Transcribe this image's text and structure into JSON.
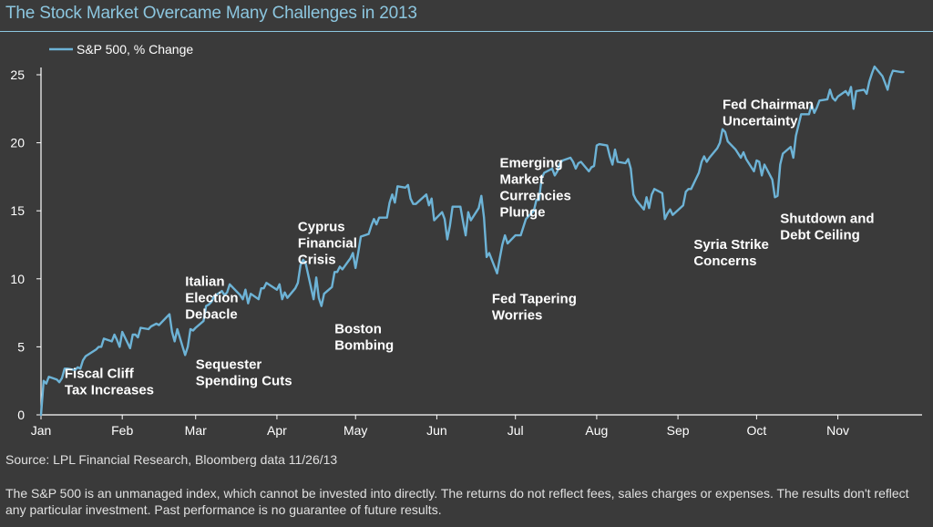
{
  "title": "The Stock Market Overcame Many Challenges in 2013",
  "source": "Source: LPL Financial Research, Bloomberg data   11/26/13",
  "disclaimer": "The S&P 500 is an unmanaged index, which cannot be invested into directly. The returns do not reflect fees, sales charges or expenses. The results don't reflect any particular investment. Past performance is no guarantee of future results.",
  "colors": {
    "line": "#6db3d6",
    "background": "#3a3a3a",
    "title": "#8cc6df",
    "text": "#ffffff"
  },
  "chart_data": {
    "type": "line",
    "title": "The Stock Market Overcame Many Challenges in 2013",
    "xlabel": "",
    "ylabel": "",
    "ylim": [
      0,
      25
    ],
    "yticks": [
      0,
      5,
      10,
      15,
      20,
      25
    ],
    "grid": false,
    "legend_position": "top-left",
    "x_tick_labels": [
      "Jan",
      "Feb",
      "Mar",
      "Apr",
      "May",
      "Jun",
      "Jul",
      "Aug",
      "Sep",
      "Oct",
      "Nov"
    ],
    "series": [
      {
        "name": "S&P 500, % Change",
        "points": [
          [
            "2013-01-01",
            0
          ],
          [
            "2013-01-02",
            2.5
          ],
          [
            "2013-01-03",
            2.3
          ],
          [
            "2013-01-04",
            2.8
          ],
          [
            "2013-01-07",
            2.6
          ],
          [
            "2013-01-08",
            2.4
          ],
          [
            "2013-01-09",
            2.7
          ],
          [
            "2013-01-10",
            3.4
          ],
          [
            "2013-01-11",
            3.4
          ],
          [
            "2013-01-14",
            3.3
          ],
          [
            "2013-01-15",
            3.5
          ],
          [
            "2013-01-16",
            3.4
          ],
          [
            "2013-01-17",
            4.0
          ],
          [
            "2013-01-18",
            4.3
          ],
          [
            "2013-01-22",
            4.8
          ],
          [
            "2013-01-23",
            5.0
          ],
          [
            "2013-01-24",
            5.0
          ],
          [
            "2013-01-25",
            5.6
          ],
          [
            "2013-01-28",
            5.4
          ],
          [
            "2013-01-29",
            5.9
          ],
          [
            "2013-01-30",
            5.5
          ],
          [
            "2013-01-31",
            5.0
          ],
          [
            "2013-02-01",
            6.1
          ],
          [
            "2013-02-04",
            4.9
          ],
          [
            "2013-02-05",
            5.9
          ],
          [
            "2013-02-06",
            5.9
          ],
          [
            "2013-02-07",
            5.7
          ],
          [
            "2013-02-08",
            6.4
          ],
          [
            "2013-02-11",
            6.3
          ],
          [
            "2013-02-12",
            6.5
          ],
          [
            "2013-02-13",
            6.6
          ],
          [
            "2013-02-14",
            6.7
          ],
          [
            "2013-02-15",
            6.6
          ],
          [
            "2013-02-19",
            7.4
          ],
          [
            "2013-02-20",
            6.1
          ],
          [
            "2013-02-21",
            5.4
          ],
          [
            "2013-02-22",
            6.3
          ],
          [
            "2013-02-25",
            4.4
          ],
          [
            "2013-02-26",
            5.0
          ],
          [
            "2013-02-27",
            6.3
          ],
          [
            "2013-02-28",
            6.2
          ],
          [
            "2013-03-01",
            6.4
          ],
          [
            "2013-03-04",
            6.9
          ],
          [
            "2013-03-05",
            8.0
          ],
          [
            "2013-03-06",
            8.1
          ],
          [
            "2013-03-07",
            8.3
          ],
          [
            "2013-03-08",
            8.7
          ],
          [
            "2013-03-11",
            9.1
          ],
          [
            "2013-03-12",
            8.8
          ],
          [
            "2013-03-13",
            9.0
          ],
          [
            "2013-03-14",
            9.6
          ],
          [
            "2013-03-15",
            9.4
          ],
          [
            "2013-03-18",
            8.8
          ],
          [
            "2013-03-19",
            8.5
          ],
          [
            "2013-03-20",
            9.2
          ],
          [
            "2013-03-21",
            8.2
          ],
          [
            "2013-03-22",
            8.9
          ],
          [
            "2013-03-25",
            8.5
          ],
          [
            "2013-03-26",
            9.3
          ],
          [
            "2013-03-27",
            9.3
          ],
          [
            "2013-03-28",
            9.7
          ],
          [
            "2013-04-01",
            9.2
          ],
          [
            "2013-04-02",
            9.6
          ],
          [
            "2013-04-03",
            8.5
          ],
          [
            "2013-04-04",
            9.0
          ],
          [
            "2013-04-05",
            8.6
          ],
          [
            "2013-04-08",
            9.3
          ],
          [
            "2013-04-09",
            9.7
          ],
          [
            "2013-04-10",
            11.0
          ],
          [
            "2013-04-11",
            11.4
          ],
          [
            "2013-04-12",
            11.1
          ],
          [
            "2013-04-15",
            8.5
          ],
          [
            "2013-04-16",
            10.1
          ],
          [
            "2013-04-17",
            8.6
          ],
          [
            "2013-04-18",
            8.0
          ],
          [
            "2013-04-19",
            8.9
          ],
          [
            "2013-04-22",
            9.4
          ],
          [
            "2013-04-23",
            10.5
          ],
          [
            "2013-04-24",
            10.5
          ],
          [
            "2013-04-25",
            10.9
          ],
          [
            "2013-04-26",
            10.7
          ],
          [
            "2013-04-29",
            11.5
          ],
          [
            "2013-04-30",
            11.9
          ],
          [
            "2013-05-01",
            10.8
          ],
          [
            "2013-05-02",
            11.9
          ],
          [
            "2013-05-03",
            13.1
          ],
          [
            "2013-05-06",
            13.3
          ],
          [
            "2013-05-07",
            13.9
          ],
          [
            "2013-05-08",
            14.4
          ],
          [
            "2013-05-09",
            14.0
          ],
          [
            "2013-05-10",
            14.5
          ],
          [
            "2013-05-13",
            14.5
          ],
          [
            "2013-05-14",
            15.6
          ],
          [
            "2013-05-15",
            16.2
          ],
          [
            "2013-05-16",
            15.6
          ],
          [
            "2013-05-17",
            16.8
          ],
          [
            "2013-05-20",
            16.7
          ],
          [
            "2013-05-21",
            16.9
          ],
          [
            "2013-05-22",
            15.9
          ],
          [
            "2013-05-23",
            15.5
          ],
          [
            "2013-05-24",
            15.5
          ],
          [
            "2013-05-28",
            16.2
          ],
          [
            "2013-05-29",
            15.4
          ],
          [
            "2013-05-30",
            15.9
          ],
          [
            "2013-05-31",
            14.3
          ],
          [
            "2013-06-03",
            14.9
          ],
          [
            "2013-06-04",
            14.4
          ],
          [
            "2013-06-05",
            12.9
          ],
          [
            "2013-06-06",
            13.9
          ],
          [
            "2013-06-07",
            15.3
          ],
          [
            "2013-06-10",
            15.3
          ],
          [
            "2013-06-11",
            14.2
          ],
          [
            "2013-06-12",
            13.2
          ],
          [
            "2013-06-13",
            14.9
          ],
          [
            "2013-06-14",
            14.3
          ],
          [
            "2013-06-17",
            15.2
          ],
          [
            "2013-06-18",
            16.1
          ],
          [
            "2013-06-19",
            14.5
          ],
          [
            "2013-06-20",
            11.6
          ],
          [
            "2013-06-21",
            11.9
          ],
          [
            "2013-06-24",
            10.4
          ],
          [
            "2013-06-25",
            11.5
          ],
          [
            "2013-06-26",
            12.5
          ],
          [
            "2013-06-27",
            13.2
          ],
          [
            "2013-06-28",
            12.6
          ],
          [
            "2013-07-01",
            13.2
          ],
          [
            "2013-07-02",
            13.2
          ],
          [
            "2013-07-03",
            13.2
          ],
          [
            "2013-07-05",
            14.4
          ],
          [
            "2013-07-08",
            15.0
          ],
          [
            "2013-07-09",
            15.8
          ],
          [
            "2013-07-10",
            15.8
          ],
          [
            "2013-07-11",
            17.4
          ],
          [
            "2013-07-12",
            17.8
          ],
          [
            "2013-07-15",
            18.1
          ],
          [
            "2013-07-16",
            17.6
          ],
          [
            "2013-07-17",
            17.9
          ],
          [
            "2013-07-18",
            18.5
          ],
          [
            "2013-07-19",
            18.7
          ],
          [
            "2013-07-22",
            18.9
          ],
          [
            "2013-07-23",
            18.6
          ],
          [
            "2013-07-24",
            18.1
          ],
          [
            "2013-07-25",
            18.5
          ],
          [
            "2013-07-26",
            18.6
          ],
          [
            "2013-07-29",
            17.9
          ],
          [
            "2013-07-30",
            18.2
          ],
          [
            "2013-07-31",
            18.3
          ],
          [
            "2013-08-01",
            19.8
          ],
          [
            "2013-08-02",
            19.9
          ],
          [
            "2013-08-05",
            19.8
          ],
          [
            "2013-08-06",
            19.0
          ],
          [
            "2013-08-07",
            18.4
          ],
          [
            "2013-08-08",
            19.5
          ],
          [
            "2013-08-09",
            18.6
          ],
          [
            "2013-08-12",
            18.5
          ],
          [
            "2013-08-13",
            18.8
          ],
          [
            "2013-08-14",
            18.1
          ],
          [
            "2013-08-15",
            16.2
          ],
          [
            "2013-08-16",
            15.8
          ],
          [
            "2013-08-19",
            15.1
          ],
          [
            "2013-08-20",
            16.0
          ],
          [
            "2013-08-21",
            15.2
          ],
          [
            "2013-08-22",
            16.2
          ],
          [
            "2013-08-23",
            16.6
          ],
          [
            "2013-08-26",
            16.3
          ],
          [
            "2013-08-27",
            14.4
          ],
          [
            "2013-08-28",
            14.8
          ],
          [
            "2013-08-29",
            15.1
          ],
          [
            "2013-08-30",
            14.7
          ],
          [
            "2013-09-03",
            15.4
          ],
          [
            "2013-09-04",
            16.4
          ],
          [
            "2013-09-05",
            16.6
          ],
          [
            "2013-09-06",
            16.6
          ],
          [
            "2013-09-09",
            17.8
          ],
          [
            "2013-09-10",
            18.6
          ],
          [
            "2013-09-11",
            19.0
          ],
          [
            "2013-09-12",
            18.6
          ],
          [
            "2013-09-13",
            18.9
          ],
          [
            "2013-09-16",
            19.6
          ],
          [
            "2013-09-17",
            20.0
          ],
          [
            "2013-09-18",
            21.0
          ],
          [
            "2013-09-19",
            20.8
          ],
          [
            "2013-09-20",
            20.1
          ],
          [
            "2013-09-23",
            19.5
          ],
          [
            "2013-09-24",
            19.2
          ],
          [
            "2013-09-25",
            18.9
          ],
          [
            "2013-09-26",
            19.3
          ],
          [
            "2013-09-27",
            18.8
          ],
          [
            "2013-09-30",
            17.9
          ],
          [
            "2013-10-01",
            18.7
          ],
          [
            "2013-10-02",
            18.6
          ],
          [
            "2013-10-03",
            17.6
          ],
          [
            "2013-10-04",
            18.4
          ],
          [
            "2013-10-07",
            17.3
          ],
          [
            "2013-10-08",
            16.0
          ],
          [
            "2013-10-09",
            16.1
          ],
          [
            "2013-10-10",
            18.4
          ],
          [
            "2013-10-11",
            19.2
          ],
          [
            "2013-10-14",
            19.7
          ],
          [
            "2013-10-15",
            18.9
          ],
          [
            "2013-10-16",
            20.5
          ],
          [
            "2013-10-17",
            21.3
          ],
          [
            "2013-10-18",
            22.1
          ],
          [
            "2013-10-21",
            22.1
          ],
          [
            "2013-10-22",
            22.8
          ],
          [
            "2013-10-23",
            22.2
          ],
          [
            "2013-10-24",
            22.6
          ],
          [
            "2013-10-25",
            23.1
          ],
          [
            "2013-10-28",
            23.2
          ],
          [
            "2013-10-29",
            23.9
          ],
          [
            "2013-10-30",
            23.3
          ],
          [
            "2013-10-31",
            23.1
          ],
          [
            "2013-11-01",
            23.4
          ],
          [
            "2013-11-04",
            23.8
          ],
          [
            "2013-11-05",
            23.5
          ],
          [
            "2013-11-06",
            24.1
          ],
          [
            "2013-11-07",
            22.5
          ],
          [
            "2013-11-08",
            23.8
          ],
          [
            "2013-11-11",
            23.9
          ],
          [
            "2013-11-12",
            23.6
          ],
          [
            "2013-11-13",
            24.5
          ],
          [
            "2013-11-14",
            25.1
          ],
          [
            "2013-11-15",
            25.6
          ],
          [
            "2013-11-18",
            24.9
          ],
          [
            "2013-11-19",
            24.4
          ],
          [
            "2013-11-20",
            23.9
          ],
          [
            "2013-11-21",
            24.8
          ],
          [
            "2013-11-22",
            25.3
          ],
          [
            "2013-11-25",
            25.2
          ],
          [
            "2013-11-26",
            25.2
          ]
        ]
      }
    ],
    "annotations": [
      {
        "lines": [
          "Fiscal Cliff",
          "Tax Increases"
        ],
        "date": "2013-01-10",
        "value": 2.7
      },
      {
        "lines": [
          "Italian",
          "Election",
          "Debacle"
        ],
        "date": "2013-02-25",
        "value": 9.5
      },
      {
        "lines": [
          "Sequester",
          "Spending Cuts"
        ],
        "date": "2013-03-01",
        "value": 3.4
      },
      {
        "lines": [
          "Cyprus",
          "Financial",
          "Crisis"
        ],
        "date": "2013-04-09",
        "value": 13.5
      },
      {
        "lines": [
          "Boston",
          "Bombing"
        ],
        "date": "2013-04-23",
        "value": 6.0
      },
      {
        "lines": [
          "Emerging",
          "Market",
          "Currencies",
          "Plunge"
        ],
        "date": "2013-06-25",
        "value": 18.2
      },
      {
        "lines": [
          "Fed Tapering",
          "Worries"
        ],
        "date": "2013-06-22",
        "value": 8.2
      },
      {
        "lines": [
          "Fed Chairman",
          "Uncertainty"
        ],
        "date": "2013-09-18",
        "value": 22.5
      },
      {
        "lines": [
          "Syria Strike",
          "Concerns"
        ],
        "date": "2013-09-07",
        "value": 12.2
      },
      {
        "lines": [
          "Shutdown and",
          "Debt Ceiling"
        ],
        "date": "2013-10-10",
        "value": 14.1
      }
    ]
  }
}
